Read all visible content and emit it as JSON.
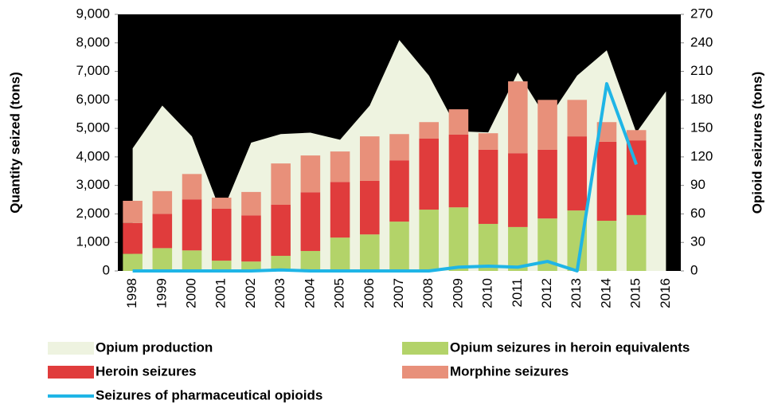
{
  "chart_data": {
    "type": "bar",
    "categories": [
      "1998",
      "1999",
      "2000",
      "2001",
      "2002",
      "2003",
      "2004",
      "2005",
      "2006",
      "2007",
      "2008",
      "2009",
      "2010",
      "2011",
      "2012",
      "2013",
      "2014",
      "2015",
      "2016"
    ],
    "y_label": "Quantity seized (tons)",
    "y2_label": "Opioid seizures  (tons)",
    "ylim": [
      0,
      9000
    ],
    "yticks": [
      0,
      {
        "value": 1000,
        "label": "1,000"
      },
      {
        "value": 2000,
        "label": "2,000"
      },
      {
        "value": 3000,
        "label": "3,000"
      },
      {
        "value": 4000,
        "label": "4,000"
      },
      {
        "value": 5000,
        "label": "5,000"
      },
      {
        "value": 6000,
        "label": "6,000"
      },
      {
        "value": 7000,
        "label": "7,000"
      },
      {
        "value": 8000,
        "label": "8,000"
      },
      {
        "value": 9000,
        "label": "9,000"
      }
    ],
    "y2lim": [
      0,
      270
    ],
    "y2ticks": [
      0,
      30,
      60,
      90,
      120,
      150,
      180,
      210,
      240,
      270
    ],
    "plot_background": "#000000",
    "series": [
      {
        "name": "Opium production",
        "type": "area",
        "color": "#eef3e0",
        "values": [
          4300,
          5800,
          4720,
          2000,
          4500,
          4800,
          4850,
          4600,
          5800,
          8100,
          6850,
          4900,
          4860,
          6960,
          5300,
          6850,
          7740,
          4850,
          6300
        ]
      },
      {
        "name": "Opium seizures in heroin equivalents",
        "type": "bar",
        "color": "#b3d369",
        "values": [
          600,
          800,
          720,
          360,
          330,
          530,
          700,
          1170,
          1280,
          1730,
          2150,
          2230,
          1650,
          1540,
          1840,
          2120,
          1760,
          1960,
          null
        ]
      },
      {
        "name": "Heroin seizures",
        "type": "bar",
        "color": "#e03c3c",
        "values": [
          1080,
          1200,
          1790,
          1820,
          1620,
          1790,
          2060,
          1950,
          1880,
          2150,
          2490,
          2550,
          2600,
          2590,
          2410,
          2600,
          2770,
          2620,
          null
        ]
      },
      {
        "name": "Morphine seizures",
        "type": "bar",
        "color": "#e8907a",
        "values": [
          780,
          800,
          890,
          390,
          820,
          1450,
          1290,
          1070,
          1560,
          920,
          580,
          890,
          580,
          2520,
          1750,
          1280,
          690,
          360,
          null
        ]
      },
      {
        "name": "Seizures of pharmaceutical opioids",
        "type": "line",
        "axis": "y2",
        "color": "#1fb5e6",
        "values": [
          0,
          0,
          0,
          0,
          0,
          1,
          0,
          0,
          0,
          0,
          0,
          4,
          5,
          4,
          10,
          0,
          197,
          112,
          null
        ]
      }
    ]
  }
}
